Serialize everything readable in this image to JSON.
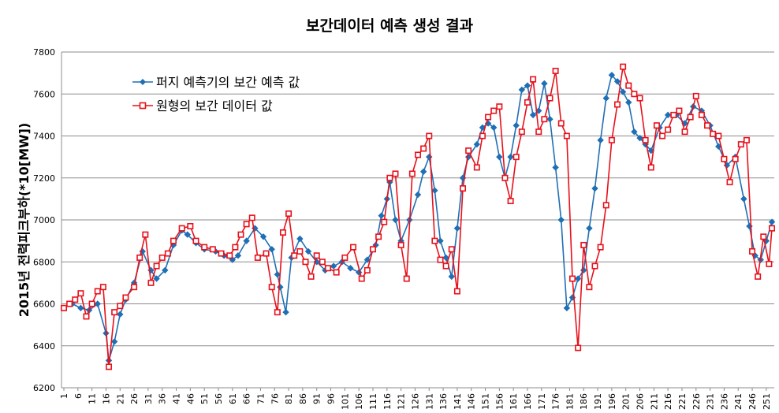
{
  "chart_data": {
    "type": "line",
    "title": "보간데이터 예측 생성 결과",
    "xlabel": "",
    "ylabel": "2015년 전력피크부하(*10[MW])",
    "ylim": [
      6200,
      7800
    ],
    "yticks": [
      6200,
      6400,
      6600,
      6800,
      7000,
      7200,
      7400,
      7600,
      7800
    ],
    "xlim": [
      1,
      253
    ],
    "xticks": [
      1,
      6,
      11,
      16,
      21,
      26,
      31,
      36,
      41,
      46,
      51,
      56,
      61,
      66,
      71,
      76,
      81,
      86,
      91,
      96,
      101,
      106,
      111,
      116,
      121,
      126,
      131,
      136,
      141,
      146,
      151,
      156,
      161,
      166,
      171,
      176,
      181,
      186,
      191,
      196,
      201,
      206,
      211,
      216,
      221,
      226,
      231,
      236,
      241,
      246,
      251
    ],
    "grid": true,
    "legend_position": "upper-left",
    "series": [
      {
        "name": "퍼지 예측기의 보간 예측 값",
        "color": "#1f6fb5",
        "marker": "diamond",
        "x": [
          1,
          4,
          7,
          10,
          13,
          16,
          17,
          19,
          21,
          23,
          26,
          29,
          32,
          34,
          37,
          40,
          43,
          45,
          48,
          51,
          55,
          58,
          61,
          63,
          66,
          69,
          72,
          75,
          77,
          78,
          80,
          82,
          85,
          88,
          91,
          94,
          97,
          100,
          103,
          106,
          109,
          112,
          114,
          116,
          117,
          119,
          121,
          124,
          127,
          129,
          131,
          133,
          135,
          137,
          139,
          141,
          143,
          145,
          148,
          150,
          152,
          154,
          156,
          158,
          160,
          162,
          164,
          166,
          168,
          170,
          172,
          174,
          176,
          178,
          180,
          182,
          184,
          186,
          188,
          190,
          192,
          194,
          196,
          198,
          200,
          202,
          204,
          206,
          208,
          210,
          213,
          216,
          219,
          222,
          225,
          228,
          231,
          234,
          237,
          240,
          243,
          245,
          247,
          249,
          251,
          253
        ],
        "y": [
          6580,
          6600,
          6580,
          6570,
          6600,
          6460,
          6330,
          6420,
          6550,
          6620,
          6700,
          6850,
          6760,
          6720,
          6760,
          6880,
          6950,
          6930,
          6890,
          6860,
          6850,
          6830,
          6810,
          6830,
          6900,
          6960,
          6920,
          6860,
          6740,
          6680,
          6560,
          6820,
          6910,
          6850,
          6800,
          6760,
          6780,
          6800,
          6770,
          6750,
          6810,
          6880,
          7020,
          7100,
          7180,
          7000,
          6900,
          7000,
          7120,
          7230,
          7300,
          7140,
          6900,
          6820,
          6730,
          6960,
          7200,
          7300,
          7360,
          7440,
          7460,
          7440,
          7300,
          7200,
          7300,
          7450,
          7620,
          7640,
          7500,
          7520,
          7650,
          7480,
          7250,
          7000,
          6580,
          6630,
          6720,
          6760,
          6960,
          7150,
          7380,
          7580,
          7690,
          7660,
          7610,
          7560,
          7420,
          7390,
          7360,
          7330,
          7440,
          7500,
          7500,
          7460,
          7540,
          7520,
          7450,
          7350,
          7260,
          7300,
          7100,
          6970,
          6830,
          6810,
          6900,
          6990
        ]
      },
      {
        "name": "원형의 보간 데이터 값",
        "color": "#e8101a",
        "marker": "square",
        "x": [
          1,
          3,
          5,
          7,
          9,
          11,
          13,
          15,
          17,
          19,
          21,
          23,
          26,
          28,
          30,
          32,
          34,
          36,
          38,
          40,
          43,
          46,
          48,
          51,
          54,
          57,
          60,
          62,
          64,
          66,
          68,
          70,
          73,
          75,
          77,
          79,
          81,
          83,
          85,
          87,
          89,
          91,
          93,
          95,
          98,
          101,
          104,
          107,
          109,
          111,
          113,
          115,
          117,
          119,
          121,
          123,
          125,
          127,
          129,
          131,
          133,
          135,
          137,
          139,
          141,
          143,
          145,
          148,
          150,
          152,
          154,
          156,
          158,
          160,
          162,
          164,
          166,
          168,
          170,
          172,
          174,
          176,
          178,
          180,
          182,
          184,
          186,
          188,
          190,
          192,
          194,
          196,
          198,
          200,
          202,
          204,
          206,
          208,
          210,
          212,
          214,
          216,
          218,
          220,
          222,
          224,
          226,
          228,
          230,
          232,
          234,
          236,
          238,
          240,
          242,
          244,
          246,
          248,
          250,
          252,
          253
        ],
        "y": [
          6580,
          6600,
          6620,
          6650,
          6540,
          6600,
          6660,
          6680,
          6300,
          6560,
          6590,
          6630,
          6680,
          6820,
          6930,
          6700,
          6780,
          6820,
          6840,
          6900,
          6960,
          6970,
          6900,
          6870,
          6860,
          6840,
          6830,
          6870,
          6930,
          6980,
          7010,
          6820,
          6840,
          6680,
          6560,
          6940,
          7030,
          6830,
          6850,
          6800,
          6730,
          6830,
          6800,
          6770,
          6750,
          6820,
          6870,
          6720,
          6760,
          6860,
          6920,
          6990,
          7200,
          7220,
          6880,
          6720,
          7220,
          7310,
          7340,
          7400,
          6900,
          6810,
          6780,
          6860,
          6660,
          7150,
          7330,
          7250,
          7400,
          7490,
          7520,
          7540,
          7200,
          7090,
          7300,
          7420,
          7560,
          7670,
          7420,
          7480,
          7580,
          7710,
          7460,
          7400,
          6720,
          6390,
          6880,
          6680,
          6780,
          6870,
          7070,
          7380,
          7550,
          7730,
          7640,
          7600,
          7580,
          7380,
          7250,
          7450,
          7400,
          7430,
          7500,
          7520,
          7420,
          7490,
          7590,
          7500,
          7450,
          7410,
          7400,
          7290,
          7180,
          7290,
          7360,
          7380,
          6850,
          6730,
          6920,
          6790,
          6960
        ]
      }
    ]
  }
}
